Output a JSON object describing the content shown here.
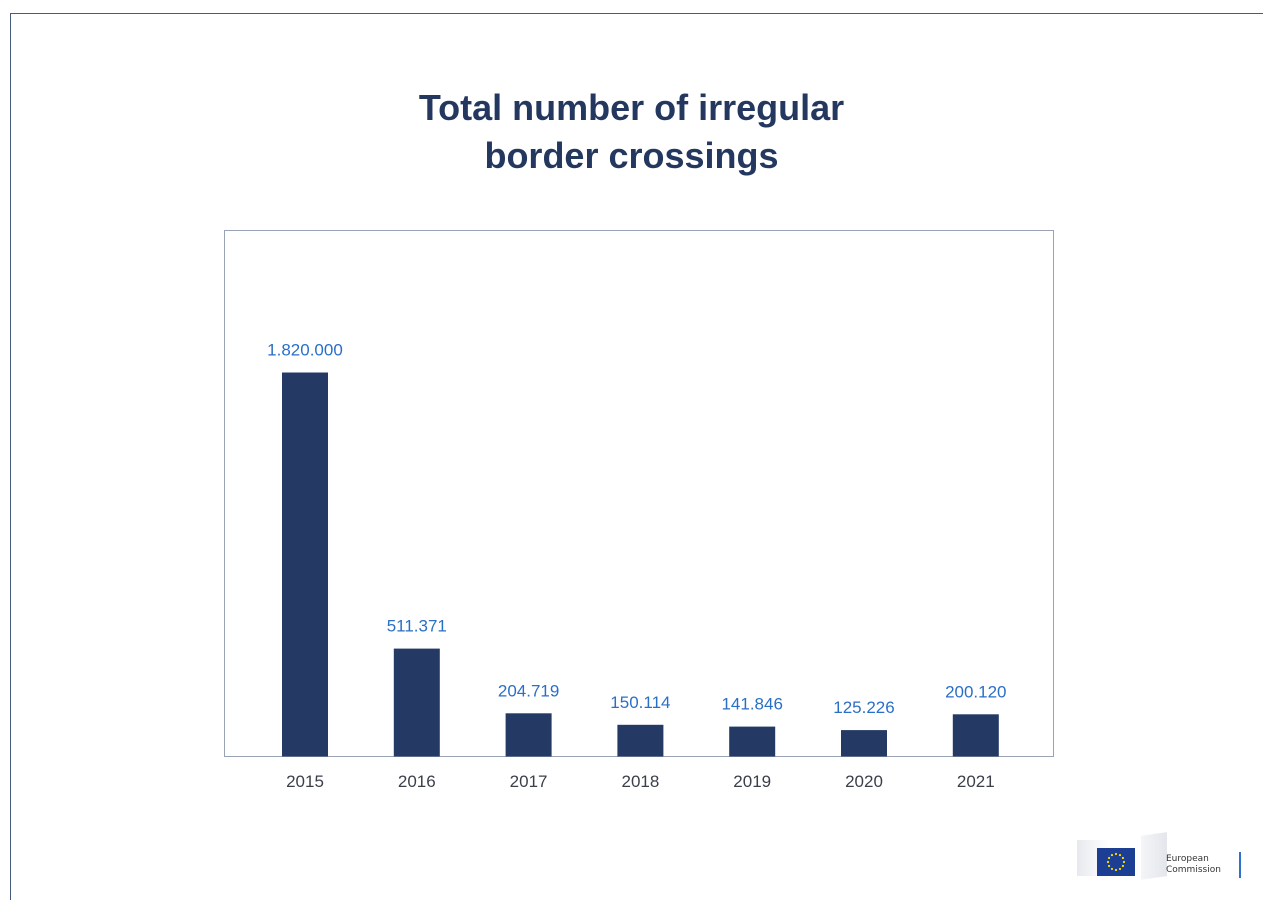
{
  "slide": {
    "title_line1": "Total number of irregular",
    "title_line2": "border crossings"
  },
  "chart_data": {
    "type": "bar",
    "title": "Total number of irregular border crossings",
    "categories": [
      "2015",
      "2016",
      "2017",
      "2018",
      "2019",
      "2020",
      "2021"
    ],
    "values": [
      1820000,
      511371,
      204719,
      150114,
      141846,
      125226,
      200120
    ],
    "data_labels": [
      "1.820.000",
      "511.371",
      "204.719",
      "150.114",
      "141.846",
      "125.226",
      "200.120"
    ],
    "ylim": [
      0,
      2200000
    ],
    "grid": false,
    "legend": "none",
    "colors": {
      "bar": "#243a64",
      "data_label": "#2a6fc6",
      "tick_label": "#3a3f4a",
      "plot_border": "#9aa3b3"
    }
  },
  "logo": {
    "line1": "European",
    "line2": "Commission",
    "flag_color": "#1c3f94",
    "star_color": "#ffdd00",
    "accent_color": "#2f6fd0"
  }
}
